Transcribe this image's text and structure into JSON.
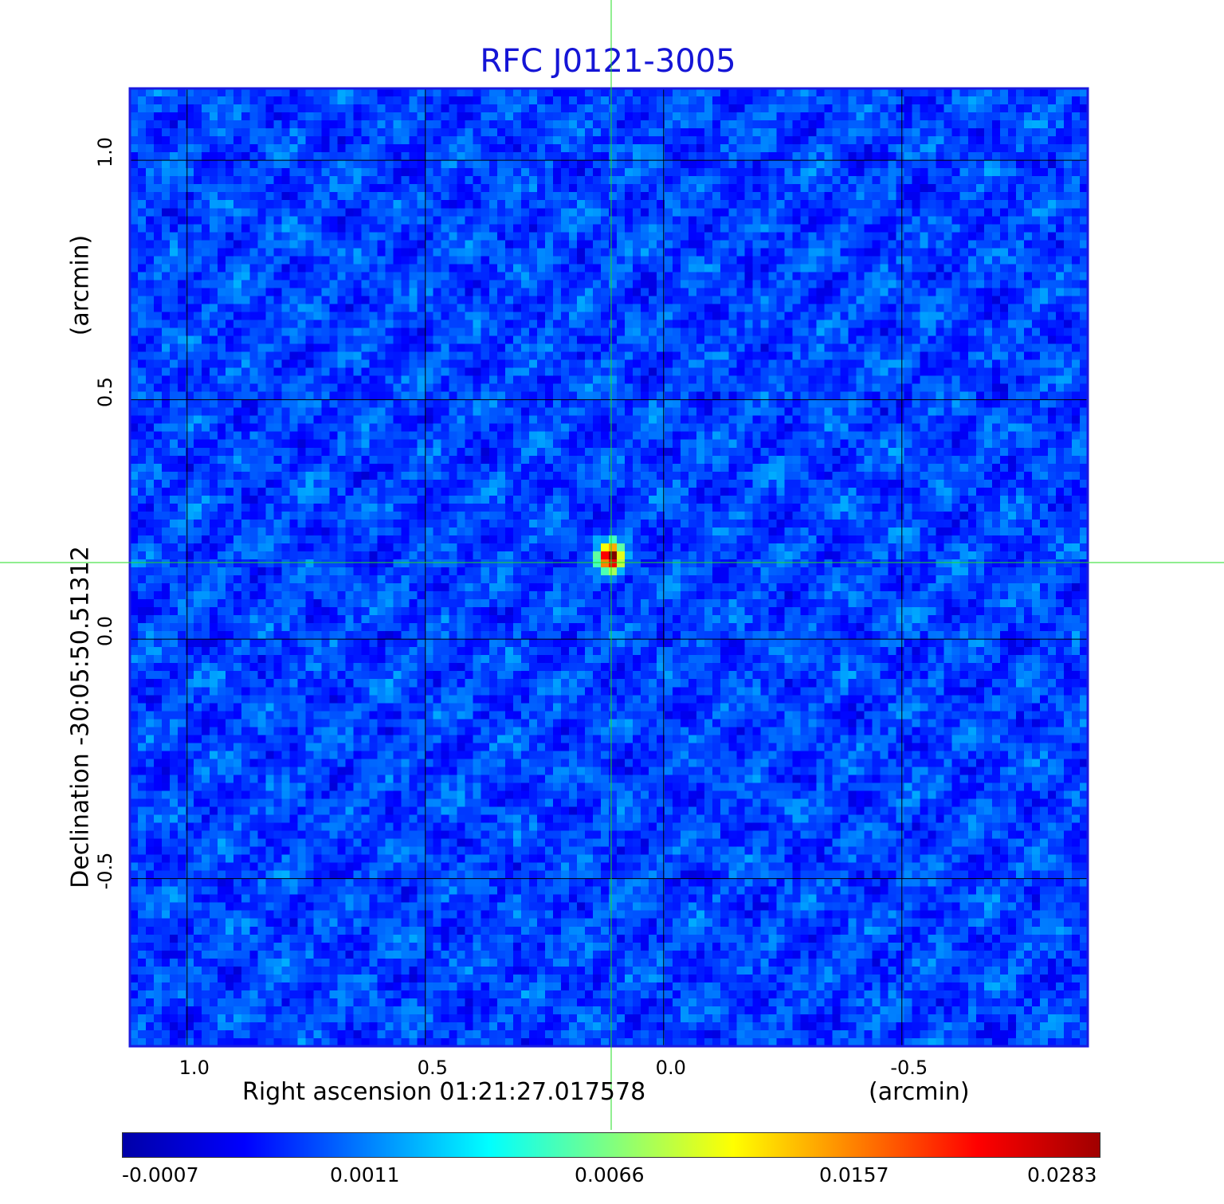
{
  "chart_data": {
    "type": "heatmap",
    "title": "RFC J0121-3005",
    "xlabel": "Right ascension  01:21:27.017578",
    "xlabel_unit": "(arcmin)",
    "ylabel": "Declination  -30:05:50.51312",
    "ylabel_unit": "(arcmin)",
    "x_ticks": [
      "1.0",
      "0.5",
      "0.0",
      "-0.5"
    ],
    "y_ticks": [
      "1.0",
      "0.5",
      "0.0",
      "-0.5"
    ],
    "x_range": [
      1.12,
      -0.89
    ],
    "y_range": [
      -0.85,
      1.15
    ],
    "x_tick_values": [
      1.0,
      0.5,
      0.0,
      -0.5
    ],
    "y_tick_values": [
      1.0,
      0.5,
      0.0,
      -0.5
    ],
    "grid": true,
    "crosshair": {
      "x": 0.11,
      "y": 0.16
    },
    "source_peak": {
      "x": 0.11,
      "y": 0.17,
      "value": 0.0283
    },
    "colorbar": {
      "tick_labels": [
        "-0.0007",
        "0.0011",
        "0.0066",
        "0.0157",
        "0.0283"
      ],
      "colors": [
        "#0000a8",
        "#0000ff",
        "#0080ff",
        "#00ffff",
        "#80ff80",
        "#ffff00",
        "#ff8000",
        "#ff0000",
        "#a00000"
      ]
    },
    "colormap": "jet"
  }
}
